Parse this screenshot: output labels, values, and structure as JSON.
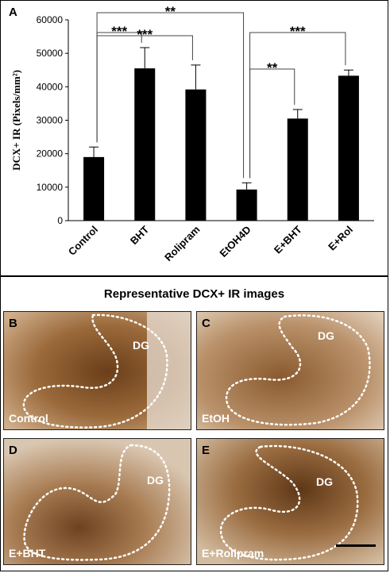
{
  "panel_a": {
    "letter": "A",
    "chart_data": {
      "type": "bar",
      "categories": [
        "Control",
        "BHT",
        "Rolipram",
        "EtOH4D",
        "E+BHT",
        "E+Rol"
      ],
      "values": [
        19000,
        45500,
        39200,
        9300,
        30500,
        43300
      ],
      "errors": [
        3000,
        6200,
        7300,
        2000,
        2700,
        1700
      ],
      "ylabel": "DCX+ IR (Pixels/mm²)",
      "ylim": [
        0,
        60000
      ],
      "yticks": [
        0,
        10000,
        20000,
        30000,
        40000,
        50000,
        60000
      ],
      "bar_color": "#000000",
      "significance": [
        {
          "from": 0,
          "to": 1,
          "label": "***"
        },
        {
          "from": 0,
          "to": 2,
          "label": "***"
        },
        {
          "from": 0,
          "to": 3,
          "label": "**"
        },
        {
          "from": 3,
          "to": 4,
          "label": "**"
        },
        {
          "from": 3,
          "to": 5,
          "label": "***"
        }
      ]
    }
  },
  "images": {
    "title": "Representative DCX+ IR images",
    "region_label": "DG",
    "panels": [
      {
        "letter": "B",
        "condition": "Control"
      },
      {
        "letter": "C",
        "condition": "EtOH"
      },
      {
        "letter": "D",
        "condition": "E+BHT"
      },
      {
        "letter": "E",
        "condition": "E+Rolipram"
      }
    ]
  }
}
